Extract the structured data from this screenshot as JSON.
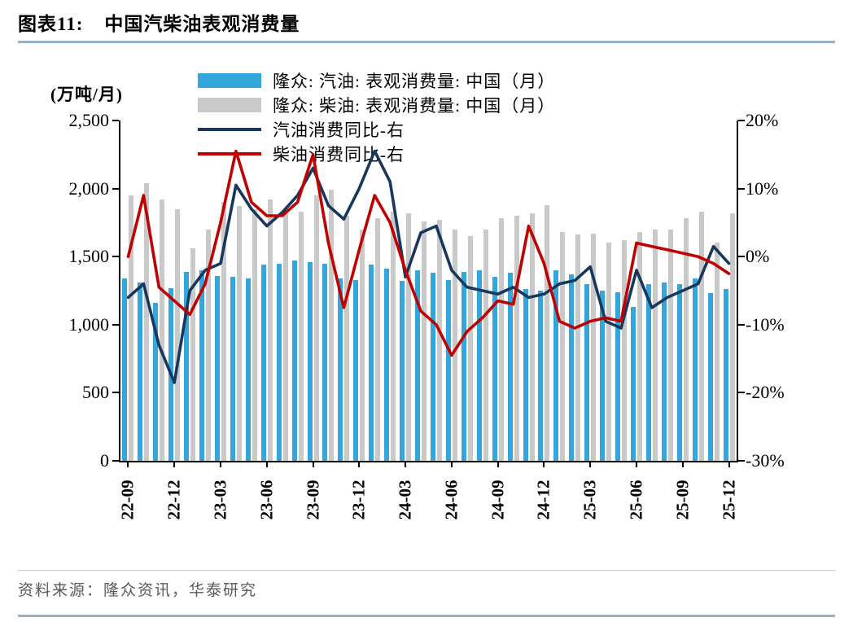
{
  "header": {
    "title_label": "图表11:",
    "title_text": "中国汽柴油表观消费量"
  },
  "footer": {
    "source": "资料来源：隆众资讯，华泰研究"
  },
  "chart_data": {
    "type": "bar+line combo",
    "unit_label": "(万吨/月)",
    "legend_position": "top-center",
    "grid": "off",
    "left_axis": {
      "min": 0,
      "max": 2500,
      "ticks": [
        "2,500",
        "2,000",
        "1,500",
        "1,000",
        "500",
        "0"
      ]
    },
    "right_axis": {
      "min": -30,
      "max": 20,
      "ticks": [
        "20%",
        "10%",
        "0%",
        "-10%",
        "-20%",
        "-30%"
      ]
    },
    "x_tick_labels": [
      "22-09",
      "22-12",
      "23-03",
      "23-06",
      "23-09",
      "23-12",
      "24-03",
      "24-06",
      "24-09",
      "24-12",
      "25-03",
      "25-06",
      "25-09",
      "25-12"
    ],
    "categories": [
      "22-09",
      "22-10",
      "22-11",
      "22-12",
      "23-01",
      "23-02",
      "23-03",
      "23-04",
      "23-05",
      "23-06",
      "23-07",
      "23-08",
      "23-09",
      "23-10",
      "23-11",
      "23-12",
      "24-01",
      "24-02",
      "24-03",
      "24-04",
      "24-05",
      "24-06",
      "24-07",
      "24-08",
      "24-09",
      "24-10",
      "24-11",
      "24-12",
      "25-01",
      "25-02",
      "25-03",
      "25-04",
      "25-05",
      "25-06",
      "25-07",
      "25-08",
      "25-09",
      "25-10",
      "25-11",
      "25-12"
    ],
    "series": [
      {
        "name": "隆众: 汽油: 表观消费量: 中国（月）",
        "type": "bar",
        "axis": "left",
        "color": "#33a7dc",
        "values": [
          1340,
          1310,
          1160,
          1270,
          1390,
          1400,
          1360,
          1350,
          1340,
          1440,
          1450,
          1470,
          1460,
          1450,
          1340,
          1330,
          1440,
          1410,
          1320,
          1400,
          1380,
          1330,
          1390,
          1400,
          1350,
          1380,
          1260,
          1250,
          1400,
          1370,
          1300,
          1250,
          1240,
          1130,
          1300,
          1310,
          1300,
          1340,
          1230,
          1260
        ]
      },
      {
        "name": "隆众: 柴油: 表观消费量: 中国（月）",
        "type": "bar",
        "axis": "left",
        "color": "#c9c9c9",
        "values": [
          1950,
          2040,
          1920,
          1850,
          1560,
          1700,
          1900,
          1870,
          1850,
          1920,
          1820,
          1830,
          1950,
          1990,
          1800,
          1700,
          1780,
          1830,
          1820,
          1760,
          1770,
          1700,
          1650,
          1700,
          1780,
          1800,
          1820,
          1880,
          1680,
          1660,
          1670,
          1600,
          1620,
          1680,
          1700,
          1700,
          1780,
          1830,
          1600,
          1820
        ]
      },
      {
        "name": "汽油消费同比-右",
        "type": "line",
        "axis": "right",
        "color": "#17375e",
        "values": [
          -6,
          -4,
          -13,
          -18.5,
          -5,
          -2,
          -1,
          10.5,
          7,
          4.5,
          6.5,
          9,
          13,
          7.5,
          5.5,
          10,
          15.5,
          11,
          -3,
          3.5,
          4.5,
          -2,
          -4.5,
          -5,
          -5.5,
          -4.5,
          -6,
          -5.5,
          -4,
          -3.5,
          -1.5,
          -9.5,
          -10.5,
          -2,
          -7.5,
          -6,
          -5,
          -4,
          1.5,
          -1
        ]
      },
      {
        "name": "柴油消费同比-右",
        "type": "line",
        "axis": "right",
        "color": "#c00000",
        "values": [
          0,
          9,
          -4.5,
          -6.5,
          -8.5,
          -4,
          5,
          15.5,
          8,
          6,
          6,
          8,
          15,
          2,
          -7.5,
          1,
          9,
          5,
          -2,
          -8,
          -10,
          -14.5,
          -11,
          -9,
          -6.5,
          -7,
          4.5,
          -1,
          -9.5,
          -10.5,
          -9.5,
          -9,
          -9.5,
          2,
          1.5,
          1,
          0.5,
          0,
          -1,
          -2.5
        ]
      }
    ]
  }
}
